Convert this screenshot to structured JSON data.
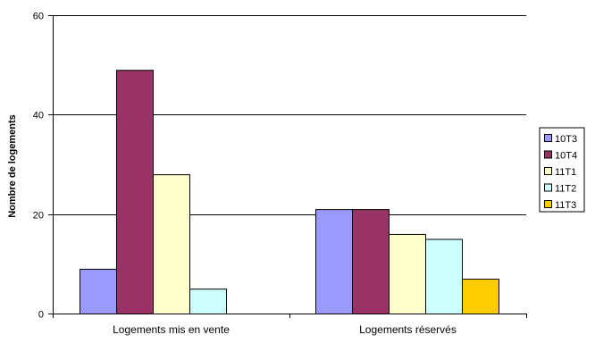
{
  "chart_data": {
    "type": "bar",
    "categories": [
      "Logements mis en vente",
      "Logements réservés"
    ],
    "ylabel": "Nombre de logements",
    "ylim": [
      0,
      60
    ],
    "yticks": [
      0,
      20,
      40,
      60
    ],
    "grid": true,
    "legend_position": "right",
    "series": [
      {
        "name": "10T3",
        "color": "#9999ff",
        "values": [
          9,
          21
        ]
      },
      {
        "name": "10T4",
        "color": "#993366",
        "values": [
          49,
          21
        ]
      },
      {
        "name": "11T1",
        "color": "#ffffcc",
        "values": [
          28,
          16
        ]
      },
      {
        "name": "11T2",
        "color": "#ccffff",
        "values": [
          5,
          15
        ]
      },
      {
        "name": "11T3",
        "color": "#ffcc00",
        "values": [
          null,
          7
        ]
      }
    ]
  }
}
